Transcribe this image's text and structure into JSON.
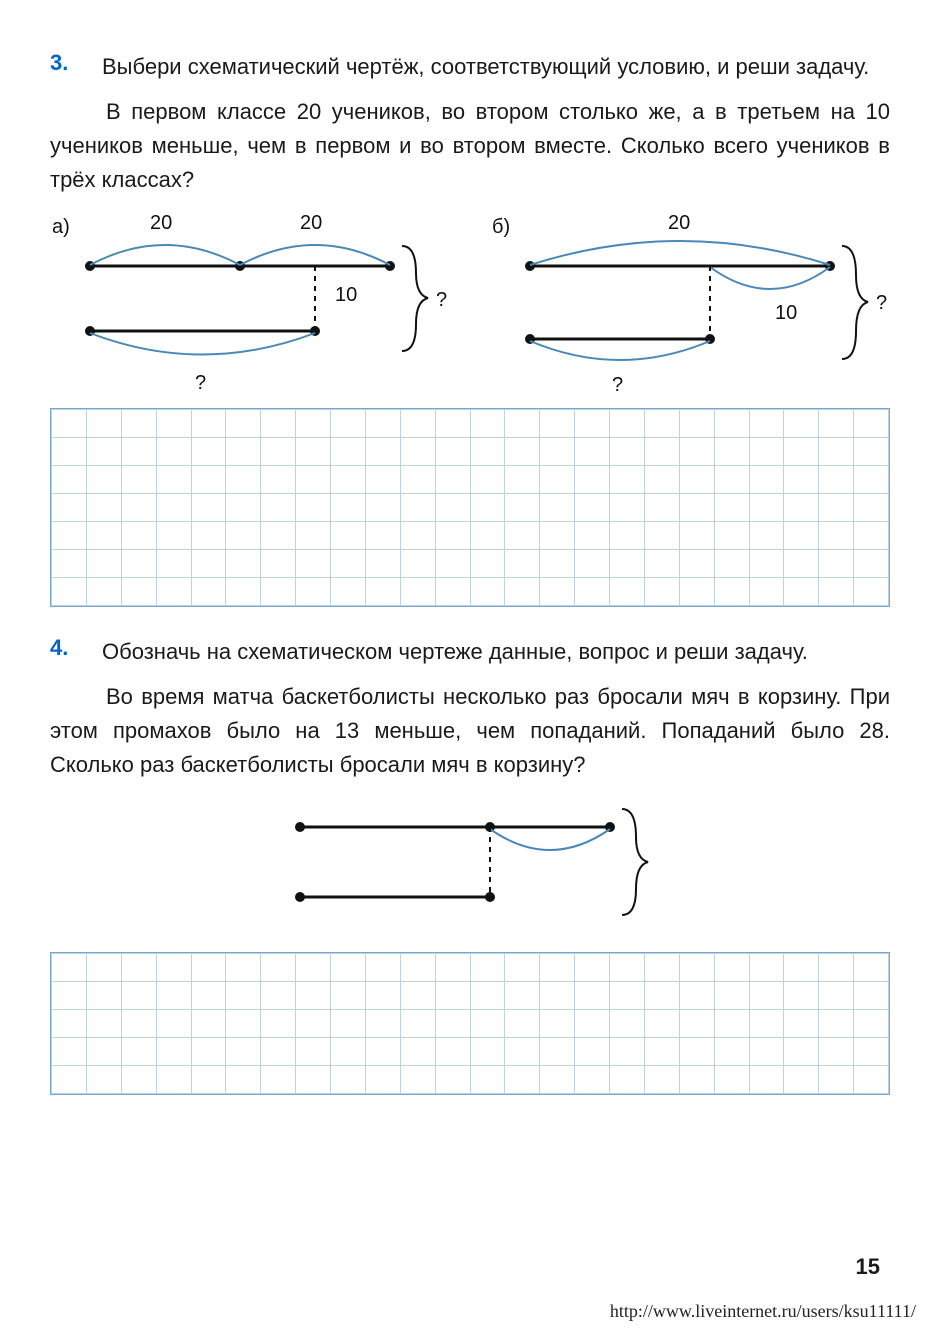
{
  "page_number": "15",
  "footer_url": "http://www.liveinternet.ru/users/ksu11111/",
  "colors": {
    "accent_blue": "#0066cc",
    "arc_blue": "#4a88b8",
    "grid_border": "#7aa6c9",
    "grid_cell": "#bcd3e6",
    "text": "#1a1a1a"
  },
  "grid1": {
    "rows": 7,
    "cols": 24
  },
  "grid2": {
    "rows": 5,
    "cols": 24
  },
  "problem3": {
    "number": "3.",
    "title": "Выбери схематический чертёж, соответствующий условию, и реши задачу.",
    "body": "В первом классе 20 учеников, во втором столько же, а в третьем на 10 учеников меньше, чем в первом и во втором вместе. Сколько всего учеников в трёх классах?",
    "diag_a": {
      "label": "а)",
      "val1": "20",
      "val2": "20",
      "val3": "10",
      "qmark1": "?",
      "qmark2": "?"
    },
    "diag_b": {
      "label": "б)",
      "val1": "20",
      "val2": "10",
      "qmark1": "?",
      "qmark2": "?"
    }
  },
  "problem4": {
    "number": "4.",
    "title": "Обозначь на схематическом чертеже данные, вопрос и реши задачу.",
    "body": "Во время матча баскетболисты несколько раз бросали мяч в корзину. При этом промахов было на 13 меньше, чем попаданий. Попаданий было 28. Сколько раз баскетболисты бросали мяч в корзину?"
  }
}
